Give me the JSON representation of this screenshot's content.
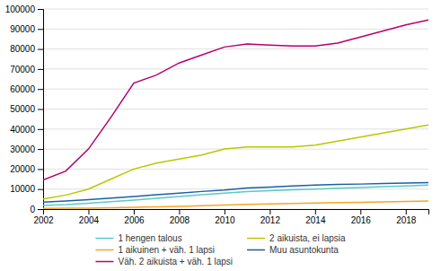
{
  "chart_data": {
    "type": "line",
    "x": [
      2002,
      2003,
      2004,
      2005,
      2006,
      2007,
      2008,
      2009,
      2010,
      2011,
      2012,
      2013,
      2014,
      2015,
      2016,
      2017,
      2018,
      2019
    ],
    "series": [
      {
        "name": "1 hengen talous",
        "color": "#5bc8c8",
        "values": [
          1800,
          2200,
          2900,
          3700,
          4500,
          5400,
          6300,
          7200,
          8000,
          8700,
          9200,
          9600,
          10000,
          10400,
          10800,
          11200,
          11600,
          12000
        ]
      },
      {
        "name": "1 aikuinen + väh. 1 lapsi",
        "color": "#f5a623",
        "values": [
          300,
          400,
          500,
          700,
          900,
          1100,
          1400,
          1700,
          2000,
          2300,
          2600,
          2800,
          3000,
          3200,
          3400,
          3600,
          3800,
          4000
        ]
      },
      {
        "name": "Väh. 2 aikuista + väh. 1 lapsi",
        "color": "#b5006e",
        "values": [
          14500,
          19000,
          30000,
          46000,
          63000,
          67000,
          73000,
          77000,
          81000,
          82500,
          82000,
          81500,
          81500,
          83000,
          86000,
          89000,
          92000,
          94500
        ]
      },
      {
        "name": "2 aikuista, ei lapsia",
        "color": "#b8c800",
        "values": [
          5000,
          7000,
          10000,
          15000,
          20000,
          23000,
          25000,
          27000,
          30000,
          31000,
          31000,
          31000,
          32000,
          34000,
          36000,
          38000,
          40000,
          42000
        ]
      },
      {
        "name": "Muu asuntokunta",
        "color": "#1a5fa8",
        "values": [
          3500,
          4000,
          4700,
          5500,
          6300,
          7200,
          8000,
          8800,
          9500,
          10500,
          11000,
          11500,
          12000,
          12300,
          12500,
          12800,
          13000,
          13200
        ]
      }
    ],
    "xlim": [
      2002,
      2019
    ],
    "xticks": [
      2002,
      2004,
      2006,
      2008,
      2010,
      2012,
      2014,
      2016,
      2018
    ],
    "ylim": [
      0,
      100000
    ],
    "yticks": [
      0,
      10000,
      20000,
      30000,
      40000,
      50000,
      60000,
      70000,
      80000,
      90000,
      100000
    ],
    "grid": "y",
    "legend": "bottom"
  }
}
